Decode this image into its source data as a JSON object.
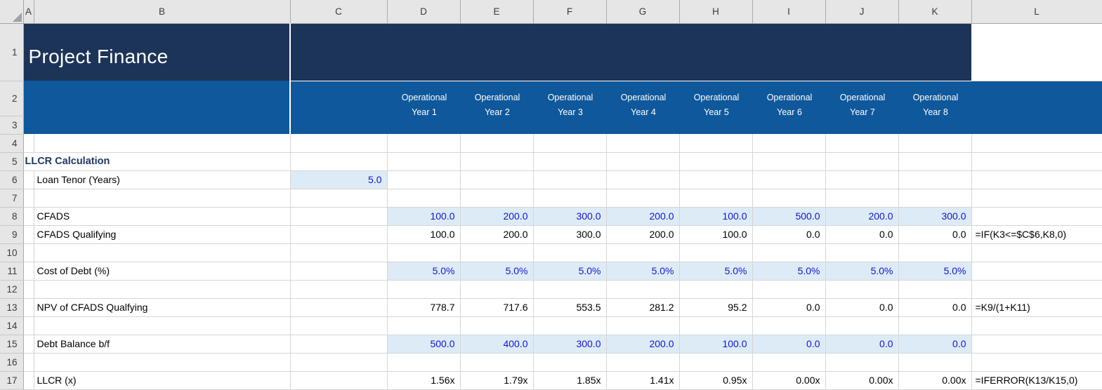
{
  "column_letters": [
    "A",
    "B",
    "C",
    "D",
    "E",
    "F",
    "G",
    "H",
    "I",
    "J",
    "K",
    "L"
  ],
  "row_numbers": [
    "1",
    "2",
    "3",
    "4",
    "5",
    "6",
    "7",
    "8",
    "9",
    "10",
    "11",
    "12",
    "13",
    "14",
    "15",
    "16",
    "17"
  ],
  "banner": {
    "title": "Project Finance",
    "period_headers": [
      {
        "line1": "Operational",
        "line2": "Year 1"
      },
      {
        "line1": "Operational",
        "line2": "Year 2"
      },
      {
        "line1": "Operational",
        "line2": "Year 3"
      },
      {
        "line1": "Operational",
        "line2": "Year 4"
      },
      {
        "line1": "Operational",
        "line2": "Year 5"
      },
      {
        "line1": "Operational",
        "line2": "Year 6"
      },
      {
        "line1": "Operational",
        "line2": "Year 7"
      },
      {
        "line1": "Operational",
        "line2": "Year 8"
      }
    ]
  },
  "table": {
    "section_heading": "LLCR Calculation",
    "rows": [
      {
        "row": 6,
        "label": "Loan Tenor (Years)",
        "c_value": "5.0",
        "style": "input"
      },
      {
        "row": 8,
        "label": "CFADS",
        "style": "input",
        "values": [
          "100.0",
          "200.0",
          "300.0",
          "200.0",
          "100.0",
          "500.0",
          "200.0",
          "300.0"
        ]
      },
      {
        "row": 9,
        "label": "CFADS Qualifying",
        "style": "calc",
        "values": [
          "100.0",
          "200.0",
          "300.0",
          "200.0",
          "100.0",
          "0.0",
          "0.0",
          "0.0"
        ],
        "formula": "=IF(K3<=$C$6,K8,0)"
      },
      {
        "row": 11,
        "label": "Cost of Debt (%)",
        "style": "input",
        "values": [
          "5.0%",
          "5.0%",
          "5.0%",
          "5.0%",
          "5.0%",
          "5.0%",
          "5.0%",
          "5.0%"
        ]
      },
      {
        "row": 13,
        "label": "NPV of CFADS Qualfying",
        "style": "calc",
        "values": [
          "778.7",
          "717.6",
          "553.5",
          "281.2",
          "95.2",
          "0.0",
          "0.0",
          "0.0"
        ],
        "formula": "=K9/(1+K11)"
      },
      {
        "row": 15,
        "label": "Debt Balance b/f",
        "style": "input",
        "values": [
          "500.0",
          "400.0",
          "300.0",
          "200.0",
          "100.0",
          "0.0",
          "0.0",
          "0.0"
        ]
      },
      {
        "row": 17,
        "label": "LLCR (x)",
        "style": "calc",
        "values": [
          "1.56x",
          "1.79x",
          "1.85x",
          "1.41x",
          "0.95x",
          "0.00x",
          "0.00x",
          "0.00x"
        ],
        "formula": "=IFERROR(K13/K15,0)"
      }
    ]
  },
  "colors": {
    "banner_dark": "#1D3459",
    "banner_blue": "#0F589B",
    "input_fill": "#DDEBF7",
    "input_font": "#1414CC",
    "heading_font": "#1F3864"
  }
}
